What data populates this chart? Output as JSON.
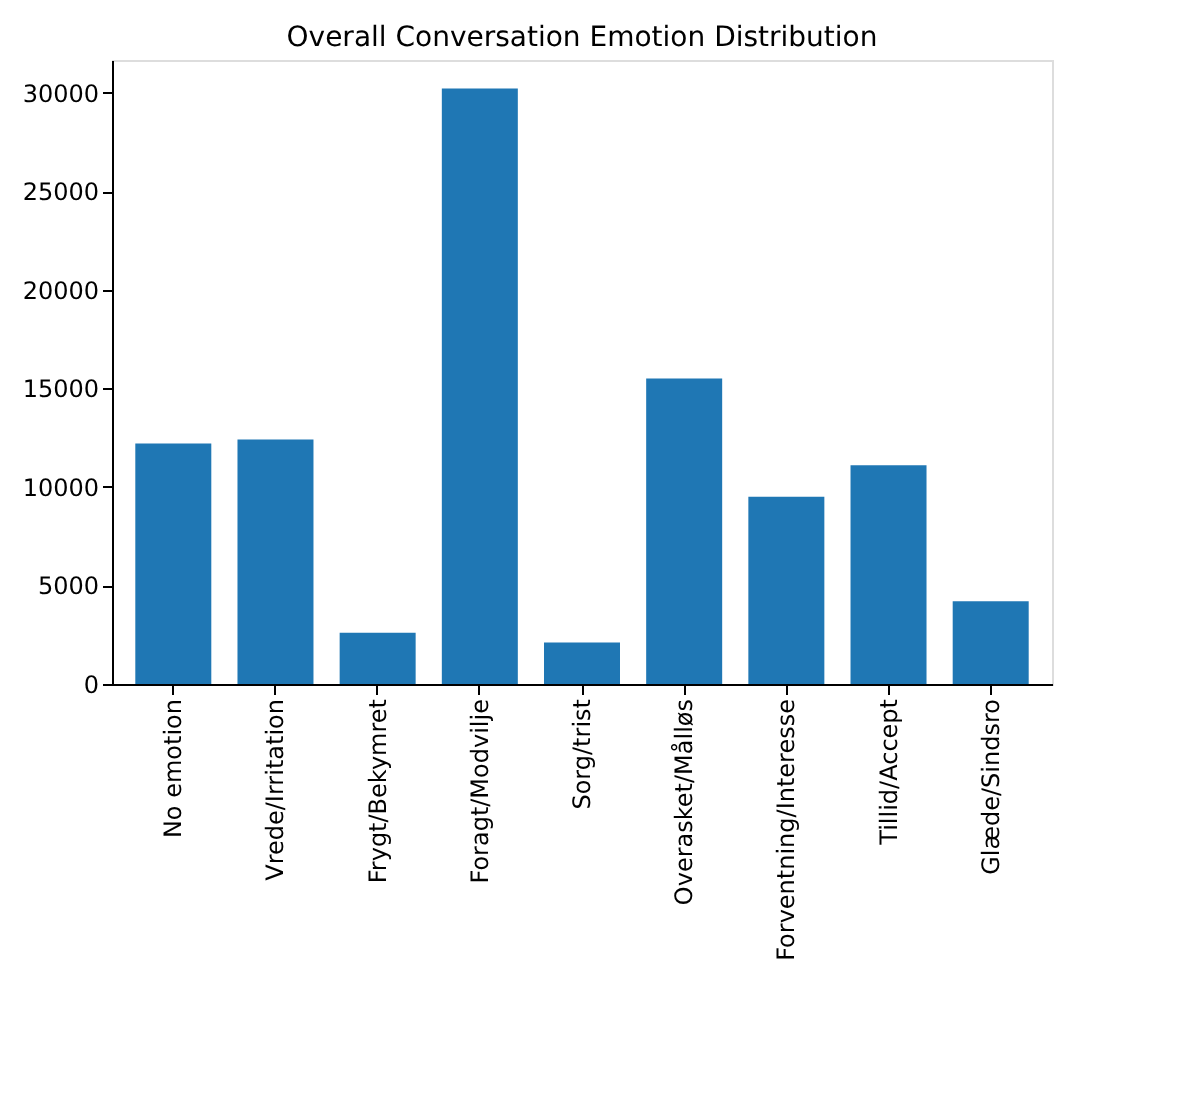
{
  "chart_data": {
    "type": "bar",
    "title": "Overall Conversation Emotion Distribution",
    "categories": [
      "No emotion",
      "Vrede/Irritation",
      "Frygt/Bekymret",
      "Foragt/Modvilje",
      "Sorg/trist",
      "Overasket/Målløs",
      "Forventning/Interesse",
      "Tillid/Accept",
      "Glæde/Sindsro"
    ],
    "values": [
      12200,
      12400,
      2600,
      30200,
      2100,
      15500,
      9500,
      11100,
      4200
    ],
    "color": "#1f77b4",
    "ylim": [
      0,
      31650
    ],
    "yticks": [
      0,
      5000,
      10000,
      15000,
      20000,
      25000,
      30000
    ],
    "grid": false
  }
}
